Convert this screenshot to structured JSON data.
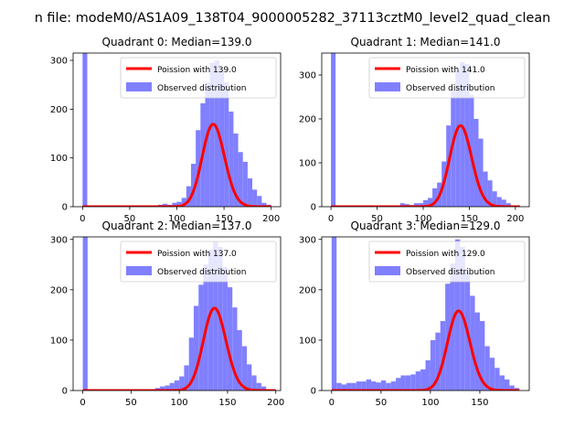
{
  "suptitle": "n file: modeM0/AS1A09_138T04_9000005282_37113cztM0_level2_quad_clean",
  "colors": {
    "hist": "#8080ff",
    "poisson": "#ff0000",
    "text": "#000000"
  },
  "chart_data": [
    {
      "type": "bar",
      "title": "Quadrant 0: Median=139.0",
      "xlabel": "",
      "ylabel": "",
      "xlim": [
        -10,
        210
      ],
      "ylim": [
        0,
        315
      ],
      "xticks": [
        "0",
        "50",
        "100",
        "150",
        "200"
      ],
      "yticks": [
        "0",
        "100",
        "200",
        "300"
      ],
      "legend_position": "top-right",
      "series": [
        {
          "name": "Observed distribution",
          "bin_width": 5,
          "bins": [
            [
              0,
              315
            ],
            [
              75,
              2
            ],
            [
              80,
              4
            ],
            [
              85,
              6
            ],
            [
              90,
              4
            ],
            [
              95,
              8
            ],
            [
              100,
              10
            ],
            [
              105,
              18
            ],
            [
              110,
              42
            ],
            [
              115,
              88
            ],
            [
              120,
              157
            ],
            [
              125,
              212
            ],
            [
              130,
              255
            ],
            [
              135,
              295
            ],
            [
              140,
              300
            ],
            [
              145,
              280
            ],
            [
              150,
              255
            ],
            [
              155,
              195
            ],
            [
              160,
              150
            ],
            [
              165,
              112
            ],
            [
              170,
              92
            ],
            [
              175,
              58
            ],
            [
              180,
              35
            ],
            [
              185,
              22
            ],
            [
              190,
              8
            ],
            [
              195,
              4
            ]
          ]
        },
        {
          "name": "Poission with 139.0",
          "lambda": 139.0,
          "scale": 5000,
          "x_range": [
            0,
            200
          ]
        }
      ]
    },
    {
      "type": "bar",
      "title": "Quadrant 1: Median=141.0",
      "xlabel": "",
      "ylabel": "",
      "xlim": [
        -10,
        215
      ],
      "ylim": [
        0,
        350
      ],
      "xticks": [
        "0",
        "50",
        "100",
        "150",
        "200"
      ],
      "yticks": [
        "0",
        "100",
        "200",
        "300"
      ],
      "legend_position": "top-right",
      "series": [
        {
          "name": "Observed distribution",
          "bin_width": 5,
          "bins": [
            [
              0,
              350
            ],
            [
              75,
              8
            ],
            [
              80,
              6
            ],
            [
              85,
              4
            ],
            [
              90,
              8
            ],
            [
              95,
              8
            ],
            [
              100,
              15
            ],
            [
              105,
              20
            ],
            [
              110,
              42
            ],
            [
              115,
              55
            ],
            [
              120,
              103
            ],
            [
              125,
              185
            ],
            [
              130,
              265
            ],
            [
              135,
              310
            ],
            [
              140,
              330
            ],
            [
              145,
              325
            ],
            [
              150,
              255
            ],
            [
              155,
              200
            ],
            [
              160,
              155
            ],
            [
              165,
              80
            ],
            [
              170,
              60
            ],
            [
              175,
              35
            ],
            [
              180,
              22
            ],
            [
              185,
              16
            ],
            [
              190,
              8
            ],
            [
              195,
              2
            ]
          ]
        },
        {
          "name": "Poission with 141.0",
          "lambda": 141.0,
          "scale": 5500,
          "x_range": [
            0,
            205
          ]
        }
      ]
    },
    {
      "type": "bar",
      "title": "Quadrant 2: Median=137.0",
      "xlabel": "",
      "ylabel": "",
      "xlim": [
        -10,
        205
      ],
      "ylim": [
        0,
        305
      ],
      "xticks": [
        "0",
        "50",
        "100",
        "150",
        "200"
      ],
      "yticks": [
        "0",
        "100",
        "200",
        "300"
      ],
      "legend_position": "top-right",
      "series": [
        {
          "name": "Observed distribution",
          "bin_width": 5,
          "bins": [
            [
              0,
              305
            ],
            [
              75,
              5
            ],
            [
              80,
              8
            ],
            [
              85,
              10
            ],
            [
              90,
              15
            ],
            [
              95,
              20
            ],
            [
              100,
              28
            ],
            [
              105,
              50
            ],
            [
              110,
              105
            ],
            [
              115,
              168
            ],
            [
              120,
              210
            ],
            [
              125,
              250
            ],
            [
              130,
              280
            ],
            [
              135,
              295
            ],
            [
              140,
              285
            ],
            [
              145,
              245
            ],
            [
              150,
              205
            ],
            [
              155,
              165
            ],
            [
              160,
              120
            ],
            [
              165,
              88
            ],
            [
              170,
              52
            ],
            [
              175,
              30
            ],
            [
              180,
              15
            ],
            [
              185,
              8
            ],
            [
              190,
              2
            ]
          ]
        },
        {
          "name": "Poission with 137.0",
          "lambda": 137.0,
          "scale": 4800,
          "x_range": [
            0,
            200
          ]
        }
      ]
    },
    {
      "type": "bar",
      "title": "Quadrant 3: Median=129.0",
      "xlabel": "",
      "ylabel": "",
      "xlim": [
        -10,
        200
      ],
      "ylim": [
        0,
        305
      ],
      "xticks": [
        "0",
        "50",
        "100",
        "150"
      ],
      "yticks": [
        "0",
        "100",
        "200",
        "300"
      ],
      "legend_position": "top-right",
      "series": [
        {
          "name": "Observed distribution",
          "bin_width": 5,
          "bins": [
            [
              0,
              305
            ],
            [
              5,
              15
            ],
            [
              10,
              12
            ],
            [
              15,
              15
            ],
            [
              20,
              15
            ],
            [
              25,
              18
            ],
            [
              30,
              18
            ],
            [
              35,
              22
            ],
            [
              40,
              18
            ],
            [
              45,
              16
            ],
            [
              50,
              20
            ],
            [
              55,
              15
            ],
            [
              60,
              18
            ],
            [
              65,
              25
            ],
            [
              70,
              30
            ],
            [
              75,
              30
            ],
            [
              80,
              32
            ],
            [
              85,
              38
            ],
            [
              90,
              42
            ],
            [
              95,
              60
            ],
            [
              100,
              100
            ],
            [
              105,
              115
            ],
            [
              110,
              138
            ],
            [
              115,
              212
            ],
            [
              120,
              252
            ],
            [
              125,
              300
            ],
            [
              130,
              285
            ],
            [
              135,
              235
            ],
            [
              140,
              188
            ],
            [
              145,
              155
            ],
            [
              150,
              138
            ],
            [
              155,
              88
            ],
            [
              160,
              65
            ],
            [
              165,
              45
            ],
            [
              170,
              30
            ],
            [
              175,
              22
            ],
            [
              180,
              10
            ],
            [
              185,
              5
            ]
          ]
        },
        {
          "name": "Poission with 129.0",
          "lambda": 129.0,
          "scale": 4500,
          "x_range": [
            0,
            190
          ]
        }
      ]
    }
  ]
}
